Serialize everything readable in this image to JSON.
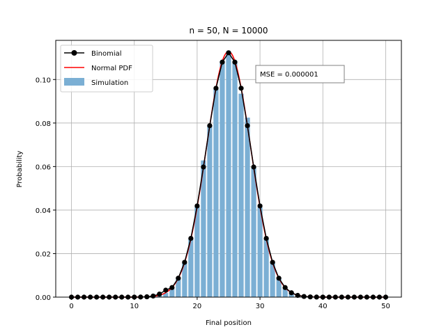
{
  "chart_data": {
    "type": "bar",
    "title": "n = 50, N = 10000",
    "xlabel": "Final position",
    "ylabel": "Probability",
    "xlim": [
      -2.5,
      52.5
    ],
    "ylim": [
      0,
      0.118
    ],
    "xticks": [
      0,
      10,
      20,
      30,
      40,
      50
    ],
    "xtick_labels": [
      "0",
      "10",
      "20",
      "30",
      "40",
      "50"
    ],
    "yticks": [
      0.0,
      0.02,
      0.04,
      0.06,
      0.08,
      0.1
    ],
    "ytick_labels": [
      "0.00",
      "0.02",
      "0.04",
      "0.06",
      "0.08",
      "0.10"
    ],
    "grid": true,
    "legend": {
      "placement": "top-left",
      "entries": [
        "Binomial",
        "Normal PDF",
        "Simulation"
      ]
    },
    "annotation": {
      "text": "MSE = 0.000001",
      "x": 30,
      "y": 0.1025
    },
    "colors": {
      "simulation": "#7bafd4",
      "binomial": "#000000",
      "normal": "#ff0000",
      "grid": "#b0b0b0"
    },
    "normal_pdf": {
      "mean": 25,
      "std": 3.5355
    },
    "series": [
      {
        "name": "Simulation",
        "type": "bar",
        "x": [
          12,
          13,
          14,
          15,
          16,
          17,
          18,
          19,
          20,
          21,
          22,
          23,
          24,
          25,
          26,
          27,
          28,
          29,
          30,
          31,
          32,
          33,
          34,
          35,
          36,
          37,
          38
        ],
        "values": [
          0.0002,
          0.0004,
          0.0009,
          0.0019,
          0.0043,
          0.0089,
          0.0158,
          0.0268,
          0.0415,
          0.0628,
          0.0789,
          0.0958,
          0.1085,
          0.1128,
          0.1085,
          0.0935,
          0.0825,
          0.0598,
          0.0412,
          0.0268,
          0.0162,
          0.0088,
          0.0041,
          0.0019,
          0.0008,
          0.0003,
          0.0001
        ]
      },
      {
        "name": "Binomial",
        "type": "line",
        "x": [
          0,
          1,
          2,
          3,
          4,
          5,
          6,
          7,
          8,
          9,
          10,
          11,
          12,
          13,
          14,
          15,
          16,
          17,
          18,
          19,
          20,
          21,
          22,
          23,
          24,
          25,
          26,
          27,
          28,
          29,
          30,
          31,
          32,
          33,
          34,
          35,
          36,
          37,
          38,
          39,
          40,
          41,
          42,
          43,
          44,
          45,
          46,
          47,
          48,
          49,
          50
        ],
        "values": [
          0.0,
          0.0,
          0.0,
          0.0,
          0.0,
          0.0,
          0.0,
          0.0,
          0.0,
          0.0,
          1e-05,
          4e-05,
          0.00015,
          0.0005,
          0.0014,
          0.0032,
          0.0044,
          0.0087,
          0.016,
          0.027,
          0.0419,
          0.0598,
          0.0788,
          0.096,
          0.108,
          0.1123,
          0.108,
          0.096,
          0.0788,
          0.0598,
          0.0419,
          0.027,
          0.016,
          0.0087,
          0.0044,
          0.002,
          0.0008,
          0.0003,
          0.0001,
          3e-05,
          1e-05,
          0.0,
          0.0,
          0.0,
          0.0,
          0.0,
          0.0,
          0.0,
          0.0,
          0.0,
          0.0
        ]
      }
    ]
  }
}
